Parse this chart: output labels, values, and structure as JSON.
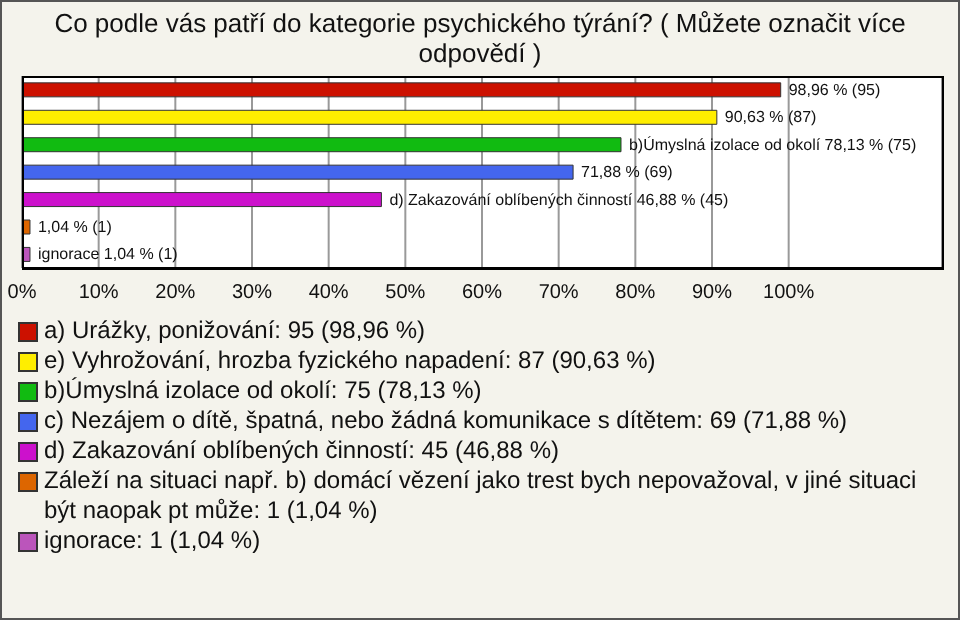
{
  "chart_data": {
    "type": "bar",
    "orientation": "horizontal",
    "stacked": true,
    "title": "Co podle vás patří do kategorie psychického týrání? ( Můžete označit více odpovědí )",
    "categories": [
      null,
      null,
      null,
      null,
      null,
      null,
      null
    ],
    "series": [
      {
        "name": "a) Urážky, ponižování: 95 (98,96 %)",
        "color": "#cc1100",
        "values": [
          98.96,
          null,
          null,
          null,
          null,
          null,
          null
        ],
        "value_labels": [
          "98,96 % (95)",
          null,
          null,
          null,
          null,
          null,
          null
        ]
      },
      {
        "name": "e) Vyhrožování, hrozba fyzického napadení: 87 (90,63 %)",
        "color": "#ffee00",
        "values": [
          null,
          90.63,
          null,
          null,
          null,
          null,
          null
        ],
        "value_labels": [
          null,
          "90,63 % (87)",
          null,
          null,
          null,
          null,
          null
        ]
      },
      {
        "name": "b)Úmyslná izolace od okolí: 75 (78,13 %)",
        "color": "#11bb11",
        "values": [
          null,
          null,
          78.13,
          null,
          null,
          null,
          null
        ],
        "value_labels": [
          null,
          null,
          "b)Úmyslná izolace od okolí 78,13 % (75)",
          null,
          null,
          null,
          null
        ]
      },
      {
        "name": "c) Nezájem o dítě, špatná, nebo žádná komunikace s dítětem: 69 (71,88 %)",
        "color": "#4466ee",
        "values": [
          null,
          null,
          null,
          71.88,
          null,
          null,
          null
        ],
        "value_labels": [
          null,
          null,
          null,
          "71,88 % (69)",
          null,
          null,
          null
        ]
      },
      {
        "name": "d) Zakazování oblíbených činností: 45 (46,88 %)",
        "color": "#cc11cc",
        "values": [
          null,
          null,
          null,
          null,
          46.88,
          null,
          null
        ],
        "value_labels": [
          null,
          null,
          null,
          null,
          "d) Zakazování oblíbených činností 46,88 % (45)",
          null,
          null
        ]
      },
      {
        "name": "Záleží na situaci např. b) domácí vězení jako trest bych nepovažoval, v jiné situaci být naopak pt může: 1 (1,04 %)",
        "color": "#dd6600",
        "values": [
          null,
          null,
          null,
          null,
          null,
          1.04,
          null
        ],
        "value_labels": [
          null,
          null,
          null,
          null,
          null,
          "1,04 % (1)",
          null
        ]
      },
      {
        "name": "ignorace: 1 (1,04 %)",
        "color": "#bb55bb",
        "values": [
          null,
          null,
          null,
          null,
          null,
          null,
          1.04
        ],
        "value_labels": [
          null,
          null,
          null,
          null,
          null,
          null,
          "ignorace 1,04 % (1)"
        ]
      }
    ],
    "xlim": [
      0,
      120
    ],
    "xticks": [
      {
        "value": 0,
        "label": "0%"
      },
      {
        "value": 10,
        "label": "10%"
      },
      {
        "value": 20,
        "label": "20%"
      },
      {
        "value": 30,
        "label": "30%"
      },
      {
        "value": 40,
        "label": "40%"
      },
      {
        "value": 50,
        "label": "50%"
      },
      {
        "value": 60,
        "label": "60%"
      },
      {
        "value": 70,
        "label": "70%"
      },
      {
        "value": 80,
        "label": "80%"
      },
      {
        "value": 90,
        "label": "90%"
      },
      {
        "value": 100,
        "label": "100%"
      },
      {
        "value": 120,
        "label": null
      }
    ],
    "grid": "x",
    "tick_labels": "x",
    "legend": "bottom"
  }
}
